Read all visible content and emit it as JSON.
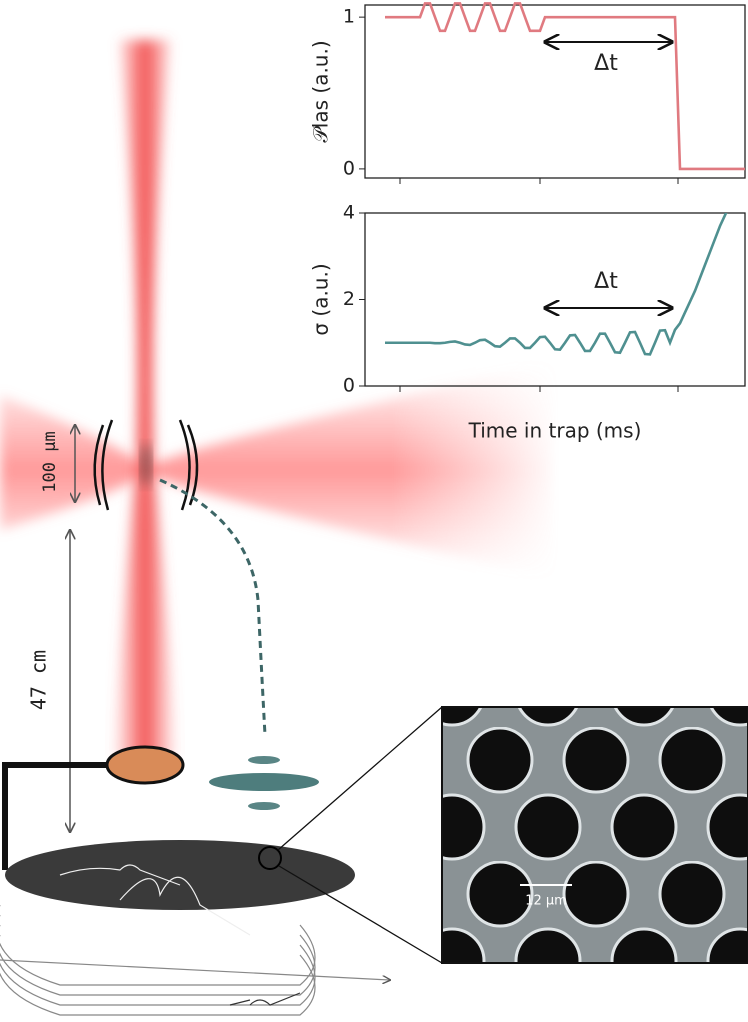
{
  "chart_data": [
    {
      "type": "line",
      "ylabel": "𝒫las (a.u.)",
      "annotation": "Δt",
      "color": "#e07a80",
      "ylim": [
        -0.06,
        1.08
      ],
      "yticks": [
        0,
        1
      ],
      "categories": [
        null,
        null,
        null,
        null,
        null,
        null,
        null,
        null,
        null,
        null,
        null,
        null,
        null,
        null,
        null,
        null,
        null,
        null,
        null,
        null,
        null,
        null,
        null,
        null,
        null,
        null,
        null,
        null,
        null,
        null,
        null,
        null,
        null,
        null,
        null,
        null,
        null,
        null,
        null,
        null,
        null,
        null,
        null,
        null,
        null,
        null,
        null,
        null,
        null,
        null,
        null,
        null,
        null,
        null,
        null,
        null,
        null,
        null,
        null,
        null,
        null,
        null,
        null,
        null,
        null,
        null,
        null,
        null,
        null,
        null,
        null,
        null,
        null
      ],
      "values": [
        1,
        1,
        1,
        1,
        1,
        1,
        1,
        1,
        1.09,
        1.09,
        1,
        0.91,
        0.91,
        1,
        1.09,
        1.09,
        1,
        0.91,
        0.91,
        1,
        1.09,
        1.09,
        1,
        0.91,
        0.91,
        1,
        1.09,
        1.09,
        1,
        0.91,
        0.91,
        0.91,
        1,
        1,
        1,
        1,
        1,
        1,
        1,
        1,
        1,
        1,
        1,
        1,
        1,
        1,
        1,
        1,
        1,
        1,
        1,
        1,
        1,
        1,
        1,
        1,
        1,
        1,
        1,
        0,
        0,
        0,
        0,
        0,
        0,
        0,
        0,
        0,
        0,
        0,
        0,
        0,
        0
      ]
    },
    {
      "type": "line",
      "ylabel": "σ (a.u.)",
      "xlabel": "Time in trap (ms)",
      "annotation": "Δt",
      "color": "#4f9090",
      "ylim": [
        0,
        4
      ],
      "yticks": [
        0,
        2,
        4
      ],
      "categories": [
        null,
        null,
        null,
        null,
        null,
        null,
        null,
        null,
        null,
        null,
        null,
        null,
        null,
        null,
        null,
        null,
        null,
        null,
        null,
        null,
        null,
        null,
        null,
        null,
        null,
        null,
        null,
        null,
        null,
        null,
        null,
        null,
        null,
        null,
        null,
        null,
        null,
        null,
        null,
        null,
        null,
        null,
        null,
        null,
        null,
        null,
        null,
        null,
        null,
        null,
        null,
        null,
        null,
        null,
        null,
        null,
        null,
        null,
        null,
        null,
        null,
        null,
        null,
        null,
        null,
        null,
        null,
        null,
        null,
        null
      ],
      "values": [
        1,
        1,
        1,
        1,
        1,
        1,
        1,
        1,
        1,
        1,
        0.99,
        0.99,
        1,
        1.02,
        1.03,
        1,
        0.96,
        0.95,
        1,
        1.06,
        1.07,
        1,
        0.92,
        0.91,
        1,
        1.1,
        1.1,
        1,
        0.88,
        0.88,
        1,
        1.13,
        1.14,
        1,
        0.85,
        0.84,
        1,
        1.17,
        1.18,
        1,
        0.81,
        0.81,
        1,
        1.21,
        1.21,
        1,
        0.78,
        0.77,
        1,
        1.24,
        1.25,
        1,
        0.74,
        0.73,
        1,
        1.28,
        1.29,
        1,
        1.3,
        1.45,
        1.7,
        1.95,
        2.2,
        2.5,
        2.8,
        3.1,
        3.4,
        3.7,
        3.95,
        4.2
      ]
    }
  ],
  "diagram": {
    "labels": [
      "100 μm",
      "47 cm",
      "12 μm"
    ]
  }
}
